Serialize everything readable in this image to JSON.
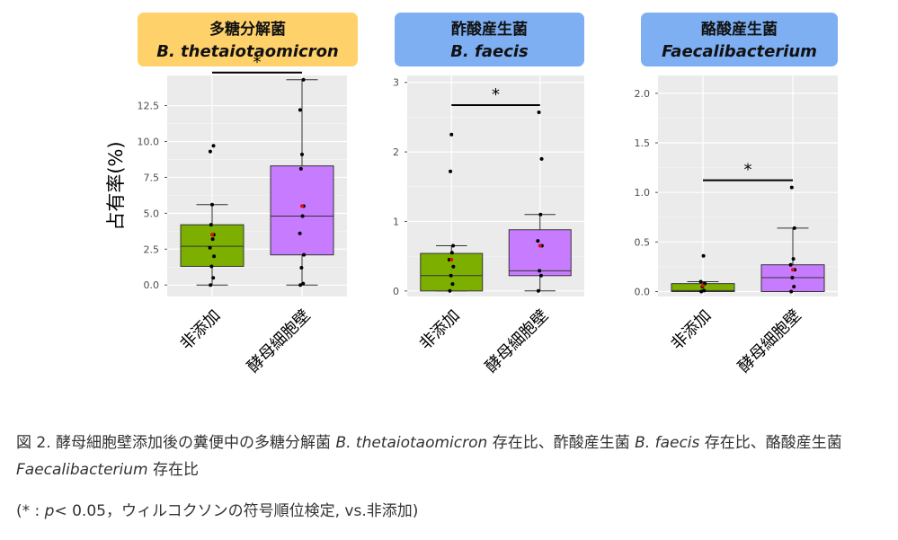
{
  "ylabel": "占有率(%)",
  "chart_data": [
    {
      "type": "box",
      "title_line1": "多糖分解菌",
      "title_line2": "B. thetaiotaomicron",
      "header_color": "#FFD16B",
      "categories": [
        "非添加",
        "酵母細胞壁"
      ],
      "ylim": [
        -0.8,
        14.6
      ],
      "yticks": [
        "0.0",
        "2.5",
        "5.0",
        "7.5",
        "10.0",
        "12.5"
      ],
      "ytick_values": [
        0,
        2.5,
        5,
        7.5,
        10,
        12.5
      ],
      "significance": "*",
      "boxes": [
        {
          "color": "#7CAF00",
          "whisker_low": 0.0,
          "q1": 1.3,
          "median": 2.7,
          "q3": 4.2,
          "whisker_high": 5.6,
          "mean": 3.5,
          "points": [
            0.0,
            0.5,
            1.3,
            2.0,
            2.6,
            3.2,
            3.5,
            4.2,
            5.6,
            9.3,
            9.7
          ]
        },
        {
          "color": "#C77CFF",
          "whisker_low": 0.0,
          "q1": 2.1,
          "median": 4.8,
          "q3": 8.3,
          "whisker_high": 14.3,
          "mean": 5.5,
          "points": [
            0.0,
            0.1,
            1.2,
            2.1,
            3.6,
            4.8,
            5.5,
            8.1,
            9.1,
            12.2,
            14.3
          ]
        }
      ]
    },
    {
      "type": "box",
      "title_line1": "酢酸産生菌",
      "title_line2": "B. faecis",
      "header_color": "#7EAFF3",
      "categories": [
        "非添加",
        "酵母細胞壁"
      ],
      "ylim": [
        -0.08,
        3.1
      ],
      "yticks": [
        "0",
        "1",
        "2",
        "3"
      ],
      "ytick_values": [
        0,
        1,
        2,
        3
      ],
      "significance": "*",
      "boxes": [
        {
          "color": "#7CAF00",
          "whisker_low": 0.0,
          "q1": 0.0,
          "median": 0.22,
          "q3": 0.54,
          "whisker_high": 0.65,
          "mean": 0.45,
          "points": [
            0.0,
            0.1,
            0.22,
            0.35,
            0.45,
            0.55,
            0.65,
            1.72,
            2.25
          ]
        },
        {
          "color": "#C77CFF",
          "whisker_low": 0.0,
          "q1": 0.22,
          "median": 0.29,
          "q3": 0.88,
          "whisker_high": 1.1,
          "mean": 0.65,
          "points": [
            0.0,
            0.22,
            0.29,
            0.65,
            0.72,
            1.1,
            1.9,
            2.57
          ]
        }
      ]
    },
    {
      "type": "box",
      "title_line1": "酪酸産生菌",
      "title_line2": "Faecalibacterium",
      "header_color": "#7EAFF3",
      "categories": [
        "非添加",
        "酵母細胞壁"
      ],
      "ylim": [
        -0.05,
        2.18
      ],
      "yticks": [
        "0.0",
        "0.5",
        "1.0",
        "1.5",
        "2.0"
      ],
      "ytick_values": [
        0,
        0.5,
        1,
        1.5,
        2
      ],
      "significance": "*",
      "boxes": [
        {
          "color": "#7CAF00",
          "whisker_low": 0.0,
          "q1": 0.0,
          "median": 0.01,
          "q3": 0.08,
          "whisker_high": 0.1,
          "mean": 0.06,
          "points": [
            0.0,
            0.01,
            0.05,
            0.08,
            0.1,
            0.36
          ]
        },
        {
          "color": "#C77CFF",
          "whisker_low": 0.0,
          "q1": 0.0,
          "median": 0.14,
          "q3": 0.27,
          "whisker_high": 0.64,
          "mean": 0.22,
          "points": [
            0.0,
            0.05,
            0.14,
            0.22,
            0.27,
            0.33,
            0.64,
            1.05
          ]
        }
      ]
    }
  ],
  "caption": {
    "part1": "図 2. 酵母細胞壁添加後の糞便中の多糖分解菌 ",
    "italic1": "B. thetaiotaomicron",
    "part2": " 存在比、酢酸産生菌 ",
    "italic2": "B. faecis",
    "part3": " 存在比、酪酸産生菌 ",
    "italic3": "Faecalibacterium",
    "part4": " 存在比"
  },
  "note": {
    "prefix": "(* : ",
    "p_italic": "p",
    "suffix": "< 0.05，ウィルコクソンの符号順位検定, vs.非添加)"
  }
}
